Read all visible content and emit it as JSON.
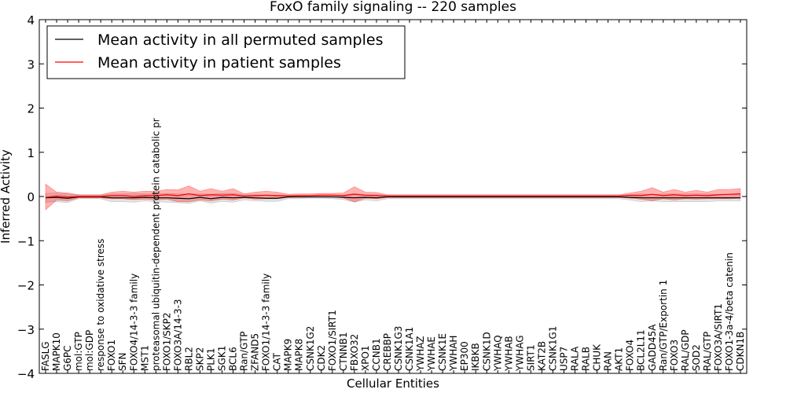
{
  "chart_data": {
    "type": "line",
    "title": "FoxO family signaling -- 220 samples",
    "xlabel": "Cellular Entities",
    "ylabel": "Inferred Activity",
    "ylim": [
      -4,
      4
    ],
    "yticks": [
      "4",
      "3",
      "2",
      "1",
      "0",
      "−1",
      "−2",
      "−3",
      "−4"
    ],
    "legend_position": "upper-left",
    "grid": false,
    "categories": [
      "FASLG",
      "MAPK10",
      "G6PC",
      "mol:GTP",
      "mol:GDP",
      "response to oxidative stress",
      "FOXO1",
      "SFN",
      "FOXO4/14-3-3 family",
      "MST1",
      "proteasomal ubiquitin-dependent protein catabolic pr",
      "FOXO1/SKP2",
      "FOXO3A/14-3-3",
      "RBL2",
      "SKP2",
      "PLK1",
      "SGK1",
      "BCL6",
      "Ran/GTP",
      "ZFAND5",
      "FOXO1/14-3-3 family",
      "CAT",
      "MAPK9",
      "MAPK8",
      "CSNK1G2",
      "CDK2",
      "FOXO1/SIRT1",
      "CTNNB1",
      "FBXO32",
      "XPO1",
      "CCNB1",
      "CREBBP",
      "CSNK1G3",
      "CSNK1A1",
      "YWHAZ",
      "YWHAE",
      "CSNK1E",
      "YWHAH",
      "EP300",
      "IKBKB",
      "CSNK1D",
      "YWHAQ",
      "YWHAB",
      "YWHAG",
      "SIRT1",
      "KAT2B",
      "CSNK1G1",
      "USP7",
      "RALA",
      "RALB",
      "CHUK",
      "RAN",
      "AKT1",
      "FOXO4",
      "BCL2L11",
      "GADD45A",
      "Ran/GTP/Exportin 1",
      "FOXO3",
      "RAL/GDP",
      "SOD2",
      "RAL/GTP",
      "FOXO3A/SIRT1",
      "FOXO1-3a-4/beta catenin",
      "CDKN1B"
    ],
    "series": [
      {
        "name": "Mean activity in all permuted samples",
        "color": "#000000",
        "values": [
          -0.03,
          -0.02,
          -0.04,
          -0.01,
          -0.01,
          -0.01,
          -0.03,
          -0.03,
          -0.03,
          -0.02,
          -0.03,
          -0.03,
          -0.04,
          -0.05,
          -0.02,
          -0.05,
          -0.02,
          -0.03,
          -0.02,
          -0.03,
          -0.04,
          -0.04,
          -0.01,
          -0.01,
          -0.01,
          -0.01,
          -0.01,
          -0.02,
          -0.03,
          -0.02,
          -0.03,
          -0.01,
          -0.01,
          -0.01,
          -0.01,
          -0.01,
          -0.01,
          -0.01,
          -0.01,
          -0.01,
          -0.01,
          -0.01,
          -0.01,
          -0.01,
          -0.01,
          -0.01,
          -0.01,
          -0.01,
          -0.01,
          -0.01,
          -0.01,
          -0.01,
          -0.01,
          -0.02,
          -0.03,
          -0.03,
          -0.03,
          -0.03,
          -0.03,
          -0.03,
          -0.03,
          -0.03,
          -0.03,
          -0.03
        ],
        "band_low": [
          -0.13,
          -0.12,
          -0.14,
          -0.05,
          -0.05,
          -0.05,
          -0.12,
          -0.12,
          -0.13,
          -0.1,
          -0.12,
          -0.13,
          -0.14,
          -0.16,
          -0.1,
          -0.15,
          -0.11,
          -0.13,
          -0.08,
          -0.1,
          -0.11,
          -0.11,
          -0.05,
          -0.05,
          -0.04,
          -0.04,
          -0.05,
          -0.07,
          -0.13,
          -0.08,
          -0.1,
          -0.05,
          -0.05,
          -0.05,
          -0.05,
          -0.05,
          -0.05,
          -0.05,
          -0.05,
          -0.05,
          -0.05,
          -0.05,
          -0.05,
          -0.05,
          -0.05,
          -0.05,
          -0.05,
          -0.05,
          -0.05,
          -0.05,
          -0.05,
          -0.05,
          -0.05,
          -0.08,
          -0.12,
          -0.1,
          -0.12,
          -0.12,
          -0.12,
          -0.12,
          -0.12,
          -0.1,
          -0.1,
          -0.1
        ],
        "band_high": [
          0.07,
          0.08,
          0.06,
          0.03,
          0.03,
          0.03,
          0.06,
          0.06,
          0.07,
          0.06,
          0.06,
          0.07,
          0.06,
          0.06,
          0.06,
          0.05,
          0.07,
          0.07,
          0.04,
          0.04,
          0.03,
          0.03,
          0.03,
          0.03,
          0.02,
          0.02,
          0.03,
          0.03,
          0.07,
          0.04,
          0.04,
          0.03,
          0.03,
          0.03,
          0.03,
          0.03,
          0.03,
          0.03,
          0.03,
          0.03,
          0.03,
          0.03,
          0.03,
          0.03,
          0.03,
          0.03,
          0.03,
          0.03,
          0.03,
          0.03,
          0.03,
          0.03,
          0.03,
          0.04,
          0.06,
          0.04,
          0.06,
          0.06,
          0.06,
          0.06,
          0.06,
          0.04,
          0.04,
          0.04
        ]
      },
      {
        "name": "Mean activity in patient samples",
        "color": "#ff0000",
        "values": [
          -0.02,
          0.01,
          -0.01,
          0.0,
          0.0,
          0.0,
          0.02,
          0.02,
          0.0,
          0.02,
          0.02,
          0.04,
          0.02,
          0.06,
          0.02,
          0.04,
          0.03,
          0.04,
          0.01,
          0.02,
          0.03,
          0.02,
          0.01,
          0.02,
          0.02,
          0.03,
          0.03,
          0.02,
          0.05,
          0.03,
          0.02,
          0.01,
          0.01,
          0.01,
          0.01,
          0.01,
          0.01,
          0.01,
          0.01,
          0.01,
          0.01,
          0.01,
          0.01,
          0.01,
          0.01,
          0.01,
          0.01,
          0.01,
          0.01,
          0.01,
          0.01,
          0.01,
          0.01,
          0.03,
          0.02,
          0.05,
          0.02,
          0.04,
          0.02,
          0.03,
          0.02,
          0.04,
          0.05,
          0.06
        ],
        "band_low": [
          -0.3,
          -0.08,
          -0.1,
          -0.03,
          -0.03,
          -0.03,
          -0.05,
          -0.05,
          -0.07,
          -0.06,
          -0.08,
          -0.06,
          -0.12,
          -0.12,
          -0.08,
          -0.1,
          -0.06,
          -0.08,
          -0.03,
          -0.06,
          -0.05,
          -0.05,
          -0.02,
          -0.01,
          -0.01,
          0.0,
          0.0,
          -0.03,
          -0.12,
          -0.04,
          -0.05,
          -0.02,
          -0.02,
          -0.02,
          -0.02,
          -0.02,
          -0.02,
          -0.02,
          -0.02,
          -0.02,
          -0.02,
          -0.02,
          -0.02,
          -0.02,
          -0.02,
          -0.02,
          -0.02,
          -0.02,
          -0.02,
          -0.02,
          -0.02,
          -0.02,
          -0.02,
          -0.04,
          -0.06,
          -0.1,
          -0.05,
          -0.08,
          -0.05,
          -0.06,
          -0.05,
          -0.05,
          -0.05,
          -0.04
        ],
        "band_high": [
          0.28,
          0.1,
          0.08,
          0.04,
          0.04,
          0.04,
          0.1,
          0.12,
          0.1,
          0.12,
          0.12,
          0.16,
          0.15,
          0.24,
          0.12,
          0.18,
          0.12,
          0.18,
          0.06,
          0.1,
          0.12,
          0.1,
          0.05,
          0.06,
          0.06,
          0.07,
          0.07,
          0.08,
          0.22,
          0.1,
          0.09,
          0.04,
          0.04,
          0.04,
          0.04,
          0.04,
          0.04,
          0.04,
          0.04,
          0.04,
          0.04,
          0.04,
          0.04,
          0.04,
          0.04,
          0.04,
          0.04,
          0.04,
          0.04,
          0.04,
          0.04,
          0.04,
          0.04,
          0.08,
          0.12,
          0.2,
          0.1,
          0.16,
          0.1,
          0.14,
          0.1,
          0.16,
          0.16,
          0.18
        ]
      }
    ]
  }
}
